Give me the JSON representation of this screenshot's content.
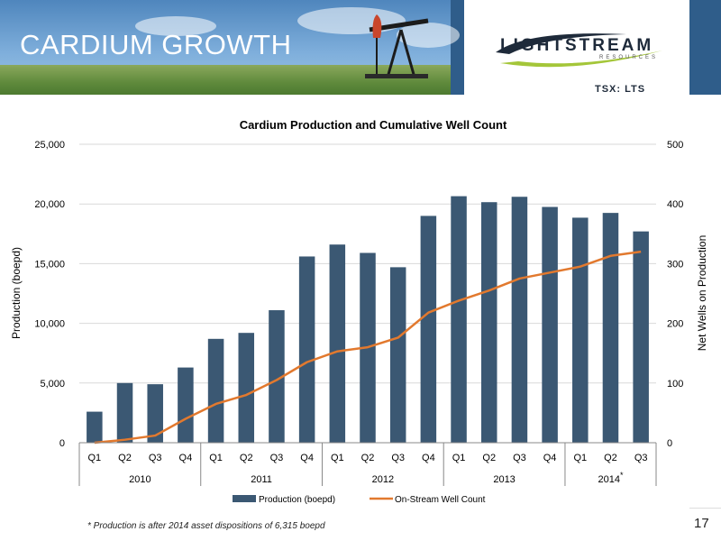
{
  "header": {
    "title": "CARDIUM GROWTH",
    "logo_name": "LIGHTSTREAM",
    "logo_sub": "RESOURCES",
    "ticker": "TSX: LTS"
  },
  "footer": {
    "footnote": "* Production is after 2014 asset dispositions of  6,315 boepd",
    "page_number": "17"
  },
  "colors": {
    "header_blue": "#2f5d8a",
    "bar": "#3b5873",
    "line": "#e2792e"
  },
  "chart_data": {
    "type": "bar",
    "title": "Cardium Production and Cumulative Well Count",
    "ylabel": "Production (boepd)",
    "y2label": "Net Wells on Production",
    "ylim": [
      0,
      25000
    ],
    "y2lim": [
      0,
      500
    ],
    "yticks": [
      "0",
      "5,000",
      "10,000",
      "15,000",
      "20,000",
      "25,000"
    ],
    "y2ticks": [
      "0",
      "100",
      "200",
      "300",
      "400",
      "500"
    ],
    "categories": [
      "Q1",
      "Q2",
      "Q3",
      "Q4",
      "Q1",
      "Q2",
      "Q3",
      "Q4",
      "Q1",
      "Q2",
      "Q3",
      "Q4",
      "Q1",
      "Q2",
      "Q3",
      "Q4",
      "Q1",
      "Q2",
      "Q3"
    ],
    "year_groups": [
      {
        "label": "2010",
        "count": 4
      },
      {
        "label": "2011",
        "count": 4
      },
      {
        "label": "2012",
        "count": 4
      },
      {
        "label": "2013",
        "count": 4
      },
      {
        "label": "2014",
        "count": 3,
        "marker": "*"
      }
    ],
    "grid": true,
    "legend_position": "bottom",
    "series": [
      {
        "name": "Production (boepd)",
        "type": "bar",
        "axis": "left",
        "values": [
          2600,
          5000,
          4900,
          6300,
          8700,
          9200,
          11100,
          15600,
          16600,
          15900,
          14700,
          19000,
          20650,
          20150,
          20600,
          19750,
          18850,
          19250,
          17700
        ]
      },
      {
        "name": "On-Stream Well Count",
        "type": "line",
        "axis": "right",
        "values": [
          0,
          5,
          12,
          40,
          65,
          80,
          105,
          135,
          153,
          160,
          176,
          218,
          238,
          255,
          275,
          285,
          295,
          313,
          320
        ]
      }
    ]
  }
}
